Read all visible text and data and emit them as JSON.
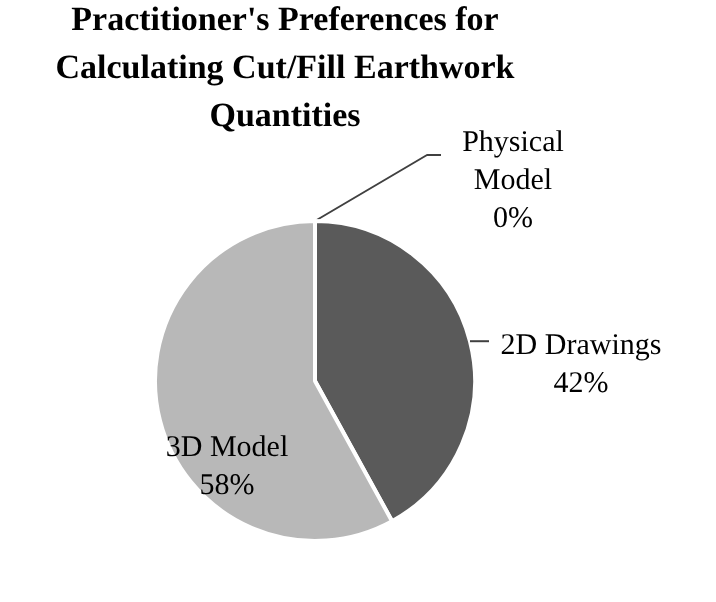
{
  "chart_data": {
    "type": "pie",
    "title": "Practitioner's Preferences for Calculating Cut/Fill Earthwork Quantities",
    "categories": [
      "Physical Model",
      "2D Drawings",
      "3D Model"
    ],
    "values": [
      0,
      42,
      58
    ],
    "colors": [
      "#808080",
      "#5a5a5a",
      "#b8b8b8"
    ],
    "value_labels": [
      "0%",
      "42%",
      "58%"
    ]
  }
}
